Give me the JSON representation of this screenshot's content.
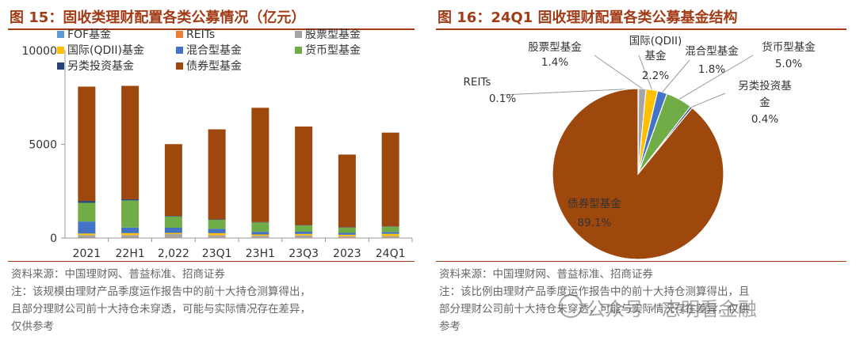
{
  "left": {
    "title": "图 15：固收类理财配置各类公募情况（亿元）",
    "source": "资料来源：中国理财网、普益标准、招商证券",
    "notes": [
      "注：该规模由理财产品季度运作报告中的前十大持仓测算得出，",
      "且部分理财公司前十大持仓未穿透，可能与实际情况存在差异，",
      "仅供参考"
    ]
  },
  "right": {
    "title": "图 16：24Q1 固收理财配置各类公募基金结构",
    "source": "资料来源：中国理财网、普益标准、招商证券",
    "notes": [
      "注：该比例由理财产品季度运作报告中的前十大持仓测算得出，且",
      "部分理财公司前十大持仓未穿透，可能与实际情况存在差异，仅供",
      "参考"
    ]
  },
  "watermark": "公众号 · 志明看金融",
  "chart_data": [
    {
      "type": "bar",
      "stacked": true,
      "title": "",
      "categories": [
        "2021",
        "22H1",
        "2,022",
        "23Q1",
        "23H1",
        "23Q3",
        "2023",
        "24Q1"
      ],
      "ylim": [
        0,
        10000
      ],
      "yticks": [
        "0",
        "5000",
        "10000"
      ],
      "legend_position": "top",
      "series": [
        {
          "name": "FOF基金",
          "color": "#5b9bd5",
          "values": [
            30,
            30,
            20,
            20,
            20,
            20,
            20,
            20
          ]
        },
        {
          "name": "REITs",
          "color": "#ed7d31",
          "values": [
            10,
            10,
            10,
            10,
            10,
            10,
            5,
            5
          ]
        },
        {
          "name": "股票型基金",
          "color": "#a5a5a5",
          "values": [
            120,
            120,
            180,
            120,
            90,
            110,
            70,
            80
          ]
        },
        {
          "name": "国际(QDII)基金",
          "color": "#ffc000",
          "values": [
            80,
            100,
            60,
            110,
            70,
            80,
            80,
            120
          ]
        },
        {
          "name": "混合型基金",
          "color": "#4472c4",
          "values": [
            640,
            300,
            280,
            230,
            140,
            120,
            100,
            100
          ]
        },
        {
          "name": "货币型基金",
          "color": "#70ad47",
          "values": [
            1000,
            1450,
            600,
            480,
            500,
            330,
            280,
            280
          ]
        },
        {
          "name": "另类投资基金",
          "color": "#264478",
          "values": [
            100,
            60,
            30,
            30,
            20,
            20,
            20,
            20
          ]
        },
        {
          "name": "债券型基金",
          "color": "#9e480e",
          "values": [
            6100,
            6050,
            3830,
            4800,
            6100,
            5260,
            3880,
            5000
          ]
        }
      ]
    },
    {
      "type": "pie",
      "title": "",
      "slices": [
        {
          "name": "REITs",
          "value": 0.1,
          "label": "0.1%",
          "color": "#ed7d31"
        },
        {
          "name": "股票型基金",
          "value": 1.4,
          "label": "1.4%",
          "color": "#a5a5a5"
        },
        {
          "name": "国际(QDII)基金",
          "value": 2.2,
          "label": "2.2%",
          "color": "#ffc000"
        },
        {
          "name": "混合型基金",
          "value": 1.8,
          "label": "1.8%",
          "color": "#4472c4"
        },
        {
          "name": "货币型基金",
          "value": 5.0,
          "label": "5.0%",
          "color": "#70ad47"
        },
        {
          "name": "另类投资基金",
          "value": 0.4,
          "label": "0.4%",
          "color": "#264478"
        },
        {
          "name": "债券型基金",
          "value": 89.1,
          "label": "89.1%",
          "color": "#9e480e"
        }
      ]
    }
  ]
}
